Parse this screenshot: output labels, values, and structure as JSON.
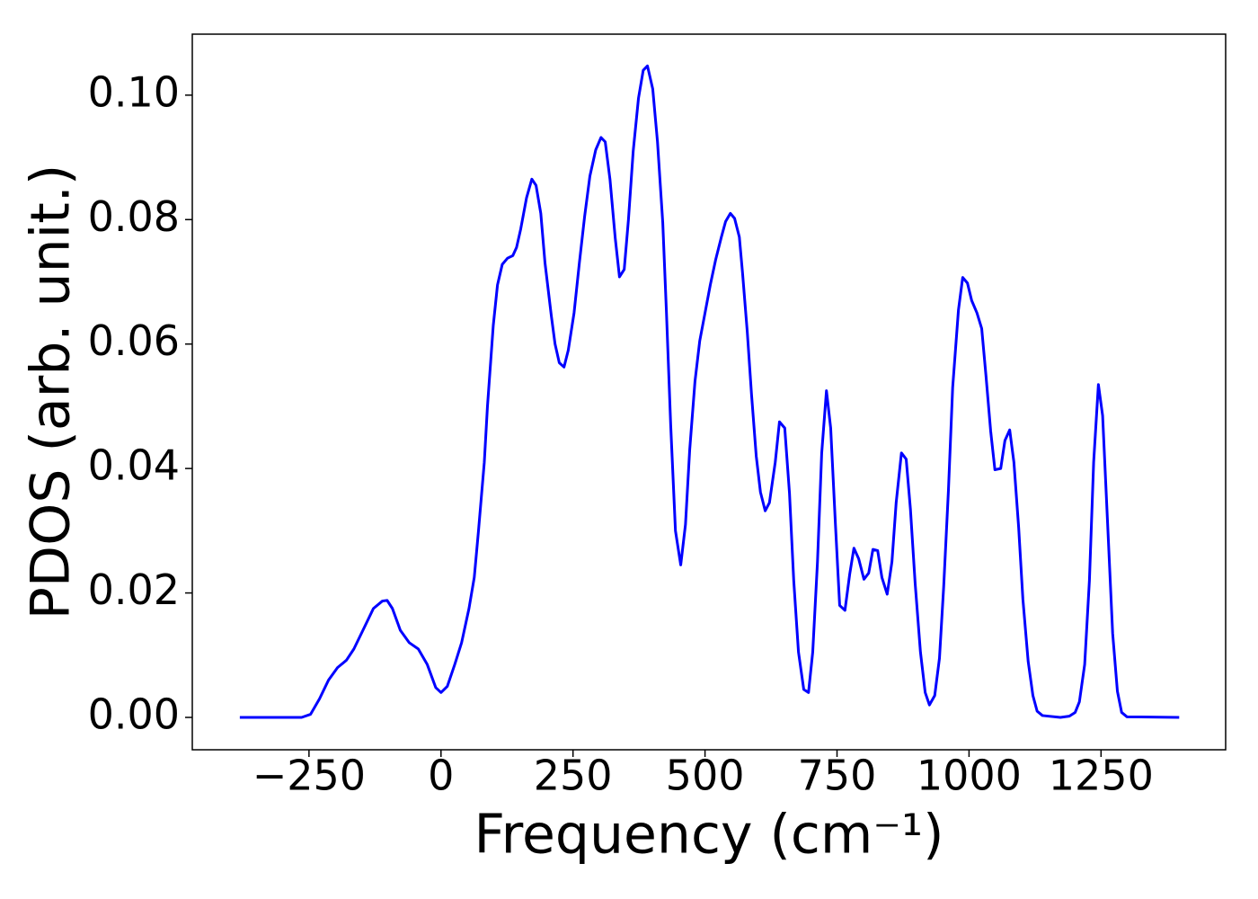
{
  "chart_data": {
    "type": "line",
    "xlabel": "Frequency (cm⁻¹)",
    "ylabel": "PDOS (arb. unit.)",
    "color": "#0000ff",
    "xlim": [
      -471,
      1486
    ],
    "ylim": [
      -0.0052,
      0.1098
    ],
    "xticks": [
      {
        "value": -250,
        "label": "−250"
      },
      0,
      250,
      500,
      750,
      1000,
      1250
    ],
    "yticks": [
      {
        "value": 0,
        "label": "0.00"
      },
      {
        "value": 0.02,
        "label": "0.02"
      },
      {
        "value": 0.04,
        "label": "0.04"
      },
      {
        "value": 0.06,
        "label": "0.06"
      },
      {
        "value": 0.08,
        "label": "0.08"
      },
      {
        "value": 0.1,
        "label": "0.10"
      }
    ],
    "x": [
      -381,
      -264,
      -247,
      -230,
      -213,
      -196,
      -179,
      -165,
      -145,
      -128,
      -111,
      -102,
      -92,
      -77,
      -60,
      -43,
      -26,
      -10,
      0,
      12,
      26,
      39,
      53,
      63,
      71,
      82,
      88,
      99,
      107,
      116,
      126,
      136,
      143,
      151,
      162,
      172,
      180,
      189,
      197,
      209,
      216,
      224,
      233,
      241,
      252,
      262,
      272,
      282,
      293,
      303,
      311,
      320,
      330,
      338,
      347,
      355,
      364,
      374,
      383,
      391,
      401,
      410,
      420,
      427,
      435,
      444,
      454,
      463,
      471,
      481,
      490,
      500,
      510,
      520,
      531,
      539,
      548,
      556,
      565,
      571,
      580,
      588,
      597,
      605,
      614,
      622,
      633,
      641,
      651,
      660,
      668,
      677,
      687,
      696,
      704,
      713,
      721,
      730,
      738,
      747,
      755,
      765,
      774,
      782,
      791,
      801,
      810,
      818,
      827,
      835,
      845,
      854,
      862,
      872,
      881,
      889,
      898,
      908,
      917,
      925,
      935,
      944,
      952,
      961,
      969,
      980,
      988,
      997,
      1005,
      1015,
      1024,
      1032,
      1041,
      1049,
      1060,
      1068,
      1077,
      1085,
      1094,
      1102,
      1112,
      1121,
      1129,
      1139,
      1173,
      1190,
      1201,
      1209,
      1219,
      1228,
      1236,
      1245,
      1253,
      1262,
      1272,
      1281,
      1289,
      1299,
      1398
    ],
    "values": [
      0,
      0,
      0.0005,
      0.003,
      0.006,
      0.008,
      0.0092,
      0.011,
      0.0145,
      0.0175,
      0.0187,
      0.0188,
      0.0175,
      0.014,
      0.012,
      0.011,
      0.0085,
      0.0048,
      0.004,
      0.005,
      0.0085,
      0.012,
      0.0175,
      0.0225,
      0.03,
      0.041,
      0.05,
      0.063,
      0.0695,
      0.0728,
      0.0738,
      0.0742,
      0.0755,
      0.0785,
      0.0835,
      0.0865,
      0.0855,
      0.081,
      0.073,
      0.0645,
      0.06,
      0.057,
      0.0563,
      0.059,
      0.065,
      0.073,
      0.0805,
      0.087,
      0.0912,
      0.0932,
      0.0925,
      0.0865,
      0.077,
      0.0708,
      0.072,
      0.08,
      0.091,
      0.0995,
      0.104,
      0.1047,
      0.101,
      0.0925,
      0.0795,
      0.065,
      0.047,
      0.03,
      0.0245,
      0.031,
      0.043,
      0.054,
      0.0605,
      0.065,
      0.0695,
      0.0735,
      0.0772,
      0.0797,
      0.081,
      0.0802,
      0.0772,
      0.0715,
      0.062,
      0.052,
      0.042,
      0.0362,
      0.0332,
      0.0345,
      0.041,
      0.0475,
      0.0465,
      0.036,
      0.022,
      0.0105,
      0.0045,
      0.004,
      0.0105,
      0.025,
      0.0425,
      0.0525,
      0.0465,
      0.031,
      0.018,
      0.0172,
      0.023,
      0.0272,
      0.0255,
      0.0222,
      0.0232,
      0.027,
      0.0268,
      0.0225,
      0.0198,
      0.025,
      0.0345,
      0.0425,
      0.0415,
      0.0335,
      0.0215,
      0.0105,
      0.004,
      0.002,
      0.0035,
      0.0095,
      0.021,
      0.0365,
      0.053,
      0.0655,
      0.0707,
      0.0698,
      0.067,
      0.065,
      0.0625,
      0.055,
      0.046,
      0.0398,
      0.04,
      0.0445,
      0.0462,
      0.041,
      0.0305,
      0.019,
      0.009,
      0.0035,
      0.001,
      0.0003,
      0,
      0.0002,
      0.0008,
      0.0025,
      0.0085,
      0.022,
      0.041,
      0.0535,
      0.0485,
      0.032,
      0.0135,
      0.0042,
      0.0008,
      0.0001,
      0
    ]
  }
}
